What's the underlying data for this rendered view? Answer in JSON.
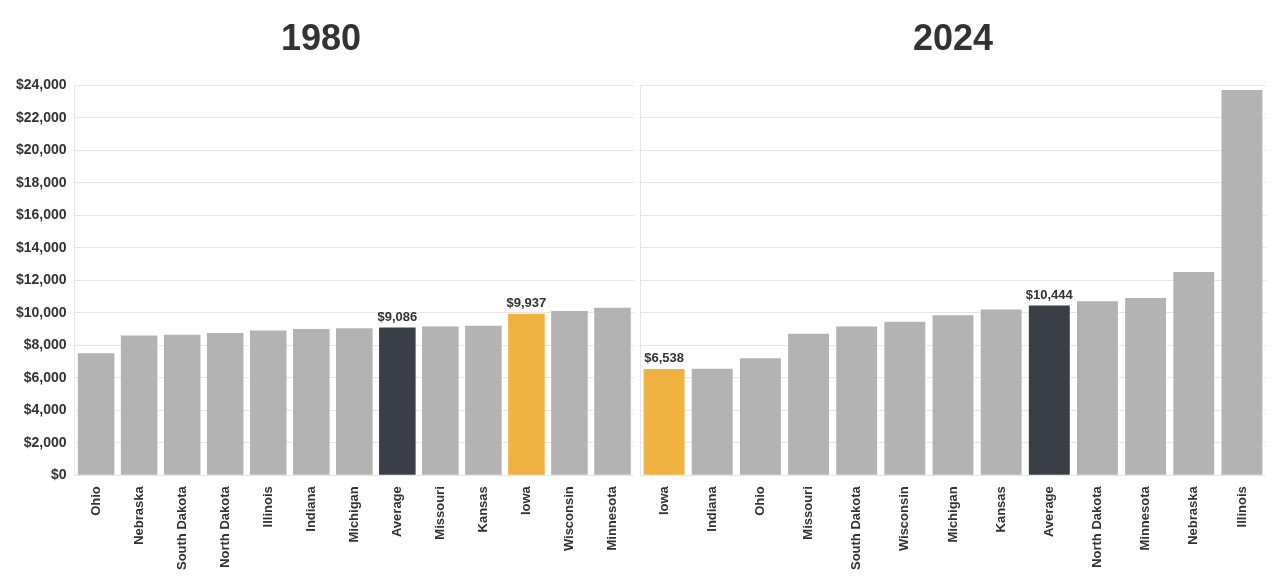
{
  "chart_data": [
    {
      "type": "bar",
      "title": "1980",
      "categories": [
        "Ohio",
        "Nebraska",
        "South Dakota",
        "North Dakota",
        "Illinois",
        "Indiana",
        "Michigan",
        "Average",
        "Missouri",
        "Kansas",
        "Iowa",
        "Wisconsin",
        "Minnesota"
      ],
      "values": [
        7500,
        8600,
        8650,
        8750,
        8900,
        9000,
        9050,
        9086,
        9150,
        9200,
        9937,
        10100,
        10300
      ],
      "colors": [
        "#b3b3b3",
        "#b3b3b3",
        "#b3b3b3",
        "#b3b3b3",
        "#b3b3b3",
        "#b3b3b3",
        "#b3b3b3",
        "#3a3f47",
        "#b3b3b3",
        "#b3b3b3",
        "#f0b240",
        "#b3b3b3",
        "#b3b3b3"
      ],
      "value_labels": [
        null,
        null,
        null,
        null,
        null,
        null,
        null,
        "$9,086",
        null,
        null,
        "$9,937",
        null,
        null
      ],
      "ylim": [
        0,
        24000
      ],
      "yticks": [
        {
          "value": 0,
          "label": "$0"
        },
        {
          "value": 2000,
          "label": "$2,000"
        },
        {
          "value": 4000,
          "label": "$4,000"
        },
        {
          "value": 6000,
          "label": "$6,000"
        },
        {
          "value": 8000,
          "label": "$8,000"
        },
        {
          "value": 10000,
          "label": "$10,000"
        },
        {
          "value": 12000,
          "label": "$12,000"
        },
        {
          "value": 14000,
          "label": "$14,000"
        },
        {
          "value": 16000,
          "label": "$16,000"
        },
        {
          "value": 18000,
          "label": "$18,000"
        },
        {
          "value": 20000,
          "label": "$20,000"
        },
        {
          "value": 22000,
          "label": "$22,000"
        },
        {
          "value": 24000,
          "label": "$24,000"
        }
      ],
      "grid": "y"
    },
    {
      "type": "bar",
      "title": "2024",
      "categories": [
        "Iowa",
        "Indiana",
        "Ohio",
        "Missouri",
        "South Dakota",
        "Wisconsin",
        "Michigan",
        "Kansas",
        "Average",
        "North Dakota",
        "Minnesota",
        "Nebraska",
        "Illinois"
      ],
      "values": [
        6538,
        6550,
        7200,
        8700,
        9150,
        9450,
        9850,
        10200,
        10444,
        10700,
        10900,
        12500,
        23700
      ],
      "colors": [
        "#f0b240",
        "#b3b3b3",
        "#b3b3b3",
        "#b3b3b3",
        "#b3b3b3",
        "#b3b3b3",
        "#b3b3b3",
        "#b3b3b3",
        "#3a3f47",
        "#b3b3b3",
        "#b3b3b3",
        "#b3b3b3",
        "#b3b3b3"
      ],
      "value_labels": [
        "$6,538",
        null,
        null,
        null,
        null,
        null,
        null,
        null,
        "$10,444",
        null,
        null,
        null,
        null
      ],
      "ylim": [
        0,
        24000
      ],
      "yticks": [
        {
          "value": 0,
          "label": null
        },
        {
          "value": 2000,
          "label": null
        },
        {
          "value": 4000,
          "label": null
        },
        {
          "value": 6000,
          "label": null
        },
        {
          "value": 8000,
          "label": null
        },
        {
          "value": 10000,
          "label": null
        },
        {
          "value": 12000,
          "label": null
        },
        {
          "value": 14000,
          "label": null
        },
        {
          "value": 16000,
          "label": null
        },
        {
          "value": 18000,
          "label": null
        },
        {
          "value": 20000,
          "label": null
        },
        {
          "value": 22000,
          "label": null
        },
        {
          "value": 24000,
          "label": null
        }
      ],
      "tick_labels": "x",
      "grid": "y"
    }
  ]
}
